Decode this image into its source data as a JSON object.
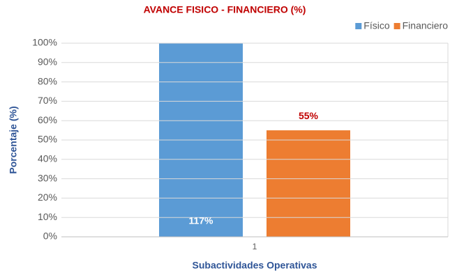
{
  "chart_data": {
    "type": "bar",
    "title": "AVANCE FISICO - FINANCIERO (%)",
    "x_label": "Subactividades Operativas",
    "y_label": "Porcentaje (%)",
    "categories": [
      "1"
    ],
    "series": [
      {
        "name": "Físico",
        "color": "#5b9bd5",
        "values": [
          117
        ],
        "value_labels": [
          "117%"
        ]
      },
      {
        "name": "Financiero",
        "color": "#ed7d31",
        "values": [
          55
        ],
        "value_labels": [
          "55%"
        ]
      }
    ],
    "ylim": [
      0,
      100
    ],
    "yticks": [
      {
        "value": 0,
        "label": "0%"
      },
      {
        "value": 10,
        "label": "10%"
      },
      {
        "value": 20,
        "label": "20%"
      },
      {
        "value": 30,
        "label": "30%"
      },
      {
        "value": 40,
        "label": "40%"
      },
      {
        "value": 50,
        "label": "50%"
      },
      {
        "value": 60,
        "label": "60%"
      },
      {
        "value": 70,
        "label": "70%"
      },
      {
        "value": 80,
        "label": "80%"
      },
      {
        "value": 90,
        "label": "90%"
      },
      {
        "value": 100,
        "label": "100%"
      }
    ],
    "grid": true,
    "legend": "top-right"
  }
}
